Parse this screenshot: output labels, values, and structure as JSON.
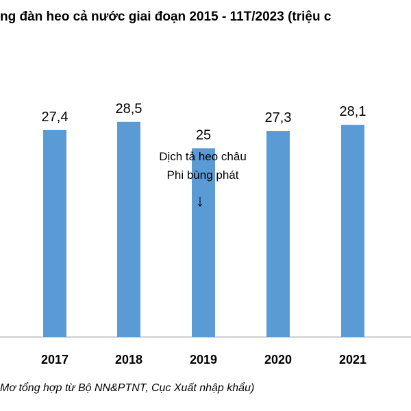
{
  "chart_data": {
    "type": "bar",
    "title": "ng đàn heo cả nước giai đoạn 2015 - 11T/2023 (triệu c",
    "categories": [
      "2017",
      "2018",
      "2019",
      "2020",
      "2021"
    ],
    "values": [
      27.4,
      28.5,
      25,
      27.3,
      28.1
    ],
    "value_labels": [
      "27,4",
      "28,5",
      "25",
      "27,3",
      "28,1"
    ],
    "ylim": [
      0,
      33.2
    ],
    "grid": false,
    "bar_color": "#5b9bd5",
    "annotation": {
      "category": "2019",
      "lines": [
        "Dịch tả heo châu",
        "Phi bùng phát"
      ],
      "arrow": "↓"
    }
  },
  "source": "Mơ tổng hợp từ Bộ NN&PTNT, Cục Xuất nhập khẩu)"
}
